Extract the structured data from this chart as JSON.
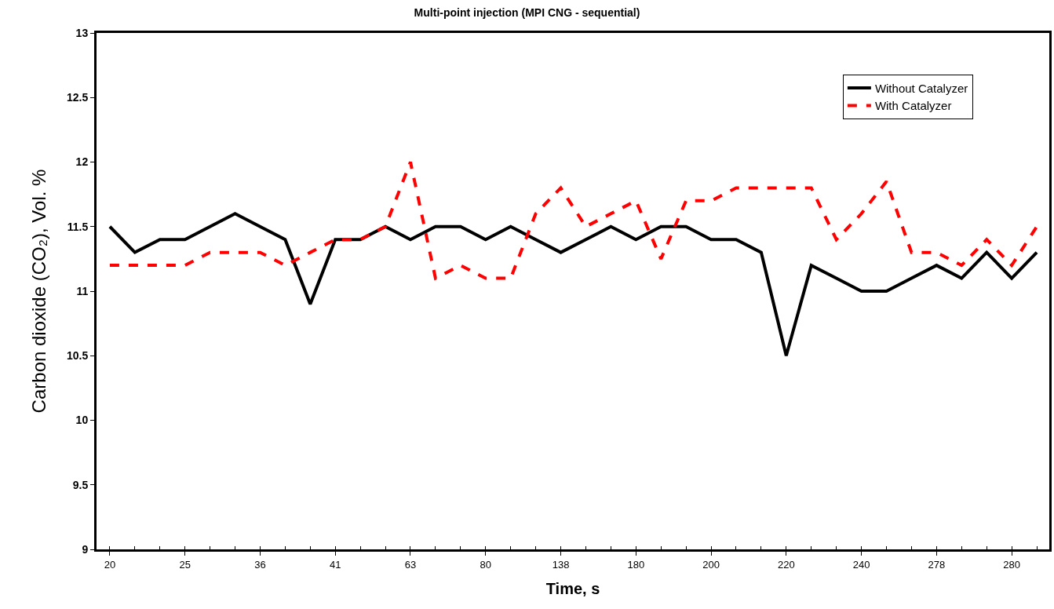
{
  "chart_data": {
    "type": "line",
    "title": "Multi-point injection (MPI CNG - sequential)",
    "xlabel": "Time, s",
    "ylabel": "Carbon dioxide (CO₂), Vol. %",
    "categories": [
      "20",
      null,
      null,
      "25",
      null,
      null,
      "36",
      null,
      null,
      "41",
      null,
      null,
      "63",
      null,
      null,
      "80",
      null,
      null,
      "138",
      null,
      null,
      "180",
      null,
      null,
      "200",
      null,
      null,
      "220",
      null,
      null,
      "240",
      null,
      null,
      "278",
      null,
      null,
      "280",
      null
    ],
    "series": [
      {
        "name": "Without Catalyzer",
        "color": "#000000",
        "line_style": "solid",
        "values": [
          11.5,
          11.3,
          11.4,
          11.4,
          11.5,
          11.6,
          11.5,
          11.4,
          10.9,
          11.4,
          11.4,
          11.5,
          11.4,
          11.5,
          11.5,
          11.4,
          11.5,
          11.4,
          11.3,
          11.4,
          11.5,
          11.4,
          11.5,
          11.5,
          11.4,
          11.4,
          11.3,
          10.5,
          11.2,
          11.1,
          11.0,
          11.0,
          11.1,
          11.2,
          11.1,
          11.3,
          11.1,
          11.3
        ]
      },
      {
        "name": "With Catalyzer",
        "color": "#ff0000",
        "line_style": "dashed",
        "values": [
          11.2,
          11.2,
          11.2,
          11.2,
          11.3,
          11.3,
          11.3,
          11.2,
          11.3,
          11.4,
          11.4,
          11.5,
          12.0,
          11.1,
          11.2,
          11.1,
          11.1,
          11.6,
          11.8,
          11.5,
          11.6,
          11.7,
          11.25,
          11.7,
          11.7,
          11.8,
          11.8,
          11.8,
          11.8,
          11.4,
          11.6,
          11.85,
          11.3,
          11.3,
          11.2,
          11.4,
          11.2,
          11.5
        ]
      }
    ],
    "ylim": [
      9,
      13
    ],
    "yticks": [
      9,
      9.5,
      10,
      10.5,
      11,
      11.5,
      12,
      12.5,
      13
    ],
    "grid": false,
    "legend": "top right",
    "marker": "none"
  }
}
